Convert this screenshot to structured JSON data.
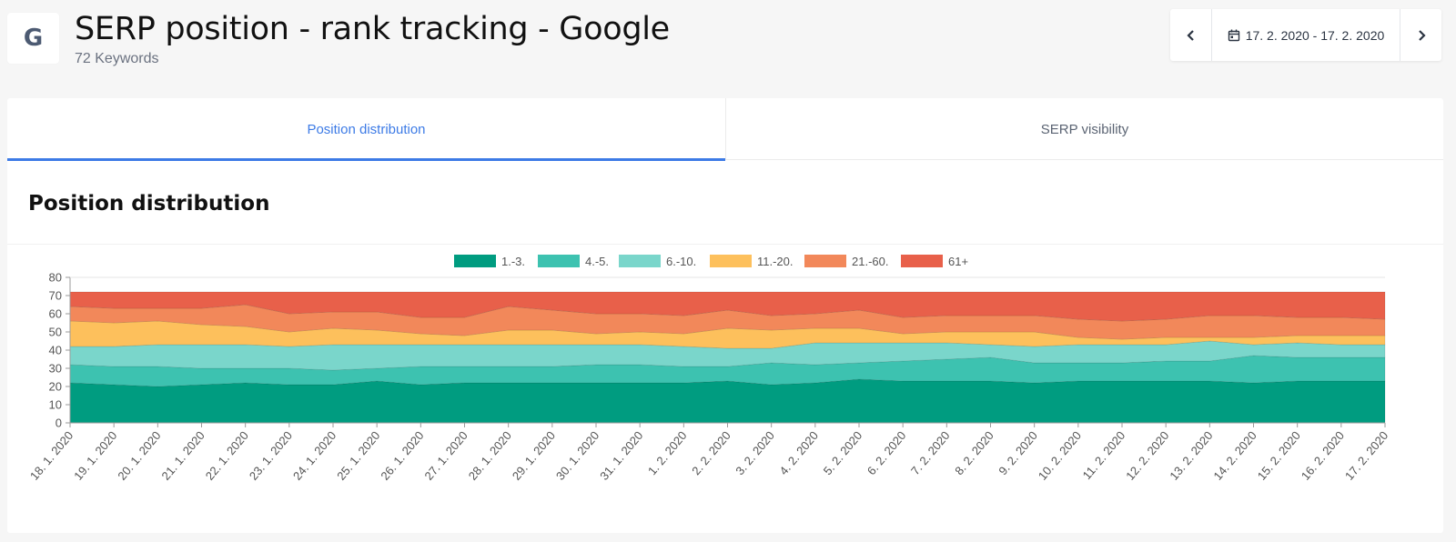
{
  "header": {
    "logo_letter": "G",
    "title": "SERP position - rank tracking - Google",
    "subtitle": "72 Keywords",
    "date_range": "17. 2. 2020 - 17. 2. 2020",
    "prev_icon": "chevron-left-icon",
    "next_icon": "chevron-right-icon",
    "calendar_icon": "calendar-icon"
  },
  "tabs": [
    {
      "label": "Position distribution",
      "active": true
    },
    {
      "label": "SERP visibility",
      "active": false
    }
  ],
  "section": {
    "title": "Position distribution"
  },
  "chart_data": {
    "type": "area",
    "stacked": true,
    "ylim": [
      0,
      80
    ],
    "yticks": [
      0,
      10,
      20,
      30,
      40,
      50,
      60,
      70,
      80
    ],
    "legend_position": "top-center",
    "grid": false,
    "categories": [
      "18. 1. 2020",
      "19. 1. 2020",
      "20. 1. 2020",
      "21. 1. 2020",
      "22. 1. 2020",
      "23. 1. 2020",
      "24. 1. 2020",
      "25. 1. 2020",
      "26. 1. 2020",
      "27. 1. 2020",
      "28. 1. 2020",
      "29. 1. 2020",
      "30. 1. 2020",
      "31. 1. 2020",
      "1. 2. 2020",
      "2. 2. 2020",
      "3. 2. 2020",
      "4. 2. 2020",
      "5. 2. 2020",
      "6. 2. 2020",
      "7. 2. 2020",
      "8. 2. 2020",
      "9. 2. 2020",
      "10. 2. 2020",
      "11. 2. 2020",
      "12. 2. 2020",
      "13. 2. 2020",
      "14. 2. 2020",
      "15. 2. 2020",
      "16. 2. 2020",
      "17. 2. 2020"
    ],
    "series": [
      {
        "name": "1.-3.",
        "color": "#009c80",
        "values": [
          22,
          21,
          20,
          21,
          22,
          21,
          21,
          23,
          21,
          22,
          22,
          22,
          22,
          22,
          22,
          23,
          21,
          22,
          24,
          23,
          23,
          23,
          22,
          23,
          23,
          23,
          23,
          22,
          23,
          23,
          23
        ]
      },
      {
        "name": "4.-5.",
        "color": "#3dc2b0",
        "values": [
          10,
          10,
          11,
          9,
          8,
          9,
          8,
          7,
          10,
          9,
          9,
          9,
          10,
          10,
          9,
          8,
          12,
          10,
          9,
          11,
          12,
          13,
          11,
          10,
          10,
          11,
          11,
          15,
          13,
          13,
          13
        ]
      },
      {
        "name": "6.-10.",
        "color": "#7ad6cb",
        "values": [
          10,
          11,
          12,
          13,
          13,
          12,
          14,
          13,
          12,
          12,
          12,
          12,
          11,
          11,
          11,
          10,
          8,
          12,
          11,
          10,
          9,
          7,
          9,
          10,
          10,
          9,
          11,
          6,
          8,
          7,
          7
        ]
      },
      {
        "name": "11.-20.",
        "color": "#fdc05c",
        "values": [
          14,
          13,
          13,
          11,
          10,
          8,
          9,
          8,
          6,
          5,
          8,
          8,
          6,
          7,
          7,
          11,
          10,
          8,
          8,
          5,
          6,
          7,
          8,
          4,
          3,
          4,
          2,
          4,
          4,
          5,
          5
        ]
      },
      {
        "name": "21.-60.",
        "color": "#f2885a",
        "values": [
          8,
          8,
          7,
          9,
          12,
          10,
          9,
          10,
          9,
          10,
          13,
          11,
          11,
          10,
          10,
          10,
          8,
          8,
          10,
          9,
          9,
          9,
          9,
          10,
          10,
          10,
          12,
          12,
          10,
          10,
          9
        ]
      },
      {
        "name": "61+",
        "color": "#e8604a",
        "values": [
          8,
          9,
          9,
          9,
          7,
          12,
          11,
          11,
          14,
          14,
          8,
          10,
          12,
          12,
          13,
          10,
          13,
          12,
          10,
          14,
          13,
          13,
          13,
          15,
          16,
          15,
          13,
          13,
          14,
          14,
          15
        ]
      }
    ]
  }
}
